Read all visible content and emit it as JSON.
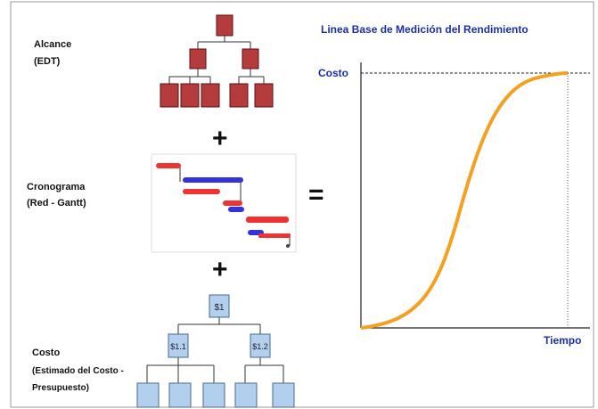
{
  "left_labels": {
    "scope": [
      "Alcance",
      "(EDT)"
    ],
    "schedule": [
      "Cronograma",
      "(Red - Gantt)"
    ],
    "cost": [
      "Costo",
      "(Estimado del Costo -",
      "Presupuesto)"
    ]
  },
  "operators": [
    "+",
    "+",
    "="
  ],
  "cost_tree": [
    "$1",
    "$1.1",
    "$1.2"
  ],
  "chart": {
    "title": "Linea Base de Medición del Rendimiento",
    "y_label": "Costo",
    "x_label": "Tiempo"
  }
}
